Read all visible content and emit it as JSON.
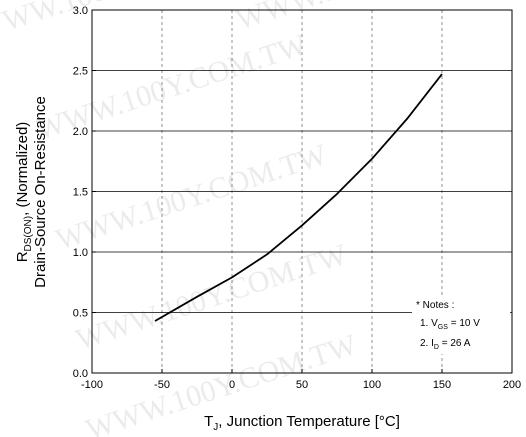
{
  "chart_data": {
    "type": "line",
    "title": "",
    "xlabel": {
      "prefix": "T",
      "sub": "J",
      "rest": ", Junction Temperature [°C]"
    },
    "ylabel": {
      "line1_prefix": "R",
      "line1_sub": "DS(ON)",
      "line1_rest": ", (Normalized)",
      "line2": "Drain-Source On-Resistance"
    },
    "xlim": [
      -100,
      200
    ],
    "ylim": [
      0.0,
      3.0
    ],
    "x_ticks": [
      "-100",
      "-50",
      "0",
      "50",
      "100",
      "150",
      "200"
    ],
    "y_ticks": [
      "0.0",
      "0.5",
      "1.0",
      "1.5",
      "2.0",
      "2.5",
      "3.0"
    ],
    "grid": {
      "vertical": "dashed",
      "horizontal": "solid"
    },
    "series": [
      {
        "x": [
          -55,
          -25,
          0,
          25,
          50,
          75,
          100,
          125,
          150
        ],
        "y": [
          0.43,
          0.63,
          0.79,
          0.98,
          1.22,
          1.48,
          1.77,
          2.1,
          2.47
        ]
      }
    ],
    "notes": {
      "header": "* Notes :",
      "items": [
        {
          "num": "1. ",
          "sym": "V",
          "sub": "GS",
          "rest": " = 10 V"
        },
        {
          "num": "2. ",
          "sym": "I",
          "sub": "D",
          "rest": " = 26 A"
        }
      ]
    }
  },
  "watermark": "WWW.100Y.COM.TW"
}
